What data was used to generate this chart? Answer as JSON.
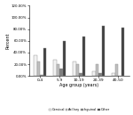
{
  "age_groups": [
    "0-4",
    "5-9",
    "10-19",
    "20-39",
    "40-50"
  ],
  "series": {
    "Cervical": [
      35,
      28,
      25,
      8,
      5
    ],
    "Axillary": [
      25,
      20,
      20,
      20,
      20
    ],
    "Inguinal": [
      2,
      12,
      5,
      5,
      0
    ],
    "Other": [
      48,
      60,
      68,
      85,
      82
    ]
  },
  "colors": {
    "Cervical": "#f2f2f2",
    "Axillary": "#bfbfbf",
    "Inguinal": "#7f7f7f",
    "Other": "#404040"
  },
  "bar_edge_color": "#888888",
  "ylim": [
    0,
    120
  ],
  "yticks": [
    0,
    20,
    40,
    60,
    80,
    100,
    120
  ],
  "ytick_labels": [
    "0.00%",
    "20.00%",
    "40.00%",
    "60.00%",
    "80.00%",
    "100.00%",
    "120.00%"
  ],
  "xlabel": "Age group (years)",
  "ylabel": "Percent",
  "legend_labels": [
    "Cervical",
    "Axillary",
    "Inguinal",
    "Other"
  ],
  "background_color": "#ffffff"
}
